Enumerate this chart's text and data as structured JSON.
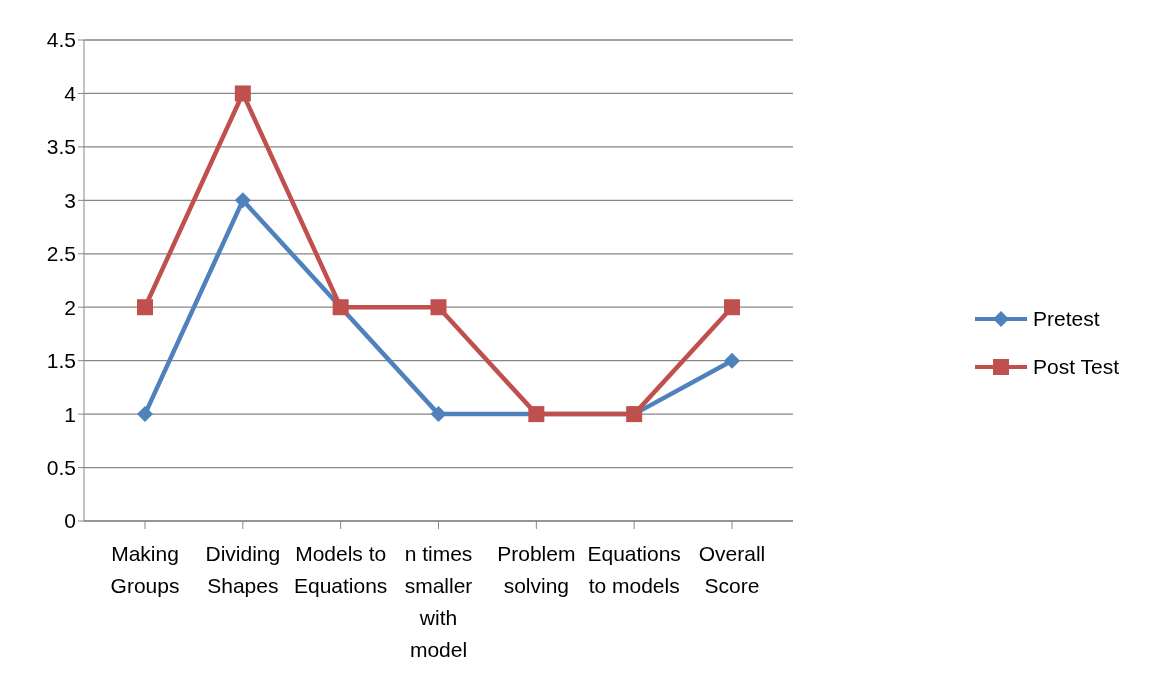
{
  "chart_data": {
    "type": "line",
    "categories": [
      "Making Groups",
      "Dividing Shapes",
      "Models to Equations",
      "n times smaller with model",
      "Problem solving",
      "Equations to models",
      "Overall Score"
    ],
    "series": [
      {
        "name": "Pretest",
        "color": "#4f81bd",
        "marker": "diamond",
        "values": [
          1,
          3,
          2,
          1,
          1,
          1,
          1.5
        ]
      },
      {
        "name": "Post Test",
        "color": "#c0504d",
        "marker": "square",
        "values": [
          2,
          4,
          2,
          2,
          1,
          1,
          2
        ]
      }
    ],
    "ylim": [
      0,
      4.5
    ],
    "yticks": [
      0,
      0.5,
      1,
      1.5,
      2,
      2.5,
      3,
      3.5,
      4,
      4.5
    ],
    "grid": "y",
    "legend": "right"
  }
}
